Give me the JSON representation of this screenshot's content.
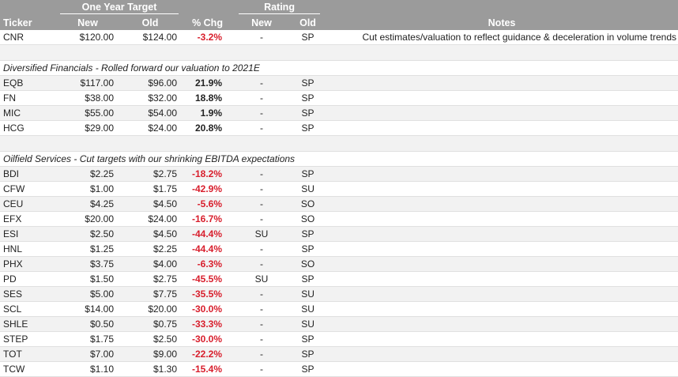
{
  "header": {
    "group_target": "One Year Target",
    "group_rating": "Rating",
    "col_ticker": "Ticker",
    "col_target_new": "New",
    "col_target_old": "Old",
    "col_chg": "% Chg",
    "col_rating_new": "New",
    "col_rating_old": "Old",
    "col_notes": "Notes"
  },
  "first_row": {
    "ticker": "CNR",
    "new": "$120.00",
    "old": "$124.00",
    "chg": "-3.2%",
    "rnew": "-",
    "rold": "SP",
    "note": "Cut estimates/valuation to reflect guidance & deceleration in volume trends"
  },
  "sections": [
    {
      "title": "Diversified Financials - Rolled forward our valuation to 2021E",
      "rows": [
        {
          "ticker": "EQB",
          "new": "$117.00",
          "old": "$96.00",
          "chg": "21.9%",
          "rnew": "-",
          "rold": "SP"
        },
        {
          "ticker": "FN",
          "new": "$38.00",
          "old": "$32.00",
          "chg": "18.8%",
          "rnew": "-",
          "rold": "SP"
        },
        {
          "ticker": "MIC",
          "new": "$55.00",
          "old": "$54.00",
          "chg": "1.9%",
          "rnew": "-",
          "rold": "SP"
        },
        {
          "ticker": "HCG",
          "new": "$29.00",
          "old": "$24.00",
          "chg": "20.8%",
          "rnew": "-",
          "rold": "SP"
        }
      ]
    },
    {
      "title": "Oilfield Services - Cut targets with our shrinking EBITDA expectations",
      "rows": [
        {
          "ticker": "BDI",
          "new": "$2.25",
          "old": "$2.75",
          "chg": "-18.2%",
          "rnew": "-",
          "rold": "SP"
        },
        {
          "ticker": "CFW",
          "new": "$1.00",
          "old": "$1.75",
          "chg": "-42.9%",
          "rnew": "-",
          "rold": "SU"
        },
        {
          "ticker": "CEU",
          "new": "$4.25",
          "old": "$4.50",
          "chg": "-5.6%",
          "rnew": "-",
          "rold": "SO"
        },
        {
          "ticker": "EFX",
          "new": "$20.00",
          "old": "$24.00",
          "chg": "-16.7%",
          "rnew": "-",
          "rold": "SO"
        },
        {
          "ticker": "ESI",
          "new": "$2.50",
          "old": "$4.50",
          "chg": "-44.4%",
          "rnew": "SU",
          "rold": "SP"
        },
        {
          "ticker": "HNL",
          "new": "$1.25",
          "old": "$2.25",
          "chg": "-44.4%",
          "rnew": "-",
          "rold": "SP"
        },
        {
          "ticker": "PHX",
          "new": "$3.75",
          "old": "$4.00",
          "chg": "-6.3%",
          "rnew": "-",
          "rold": "SO"
        },
        {
          "ticker": "PD",
          "new": "$1.50",
          "old": "$2.75",
          "chg": "-45.5%",
          "rnew": "SU",
          "rold": "SP"
        },
        {
          "ticker": "SES",
          "new": "$5.00",
          "old": "$7.75",
          "chg": "-35.5%",
          "rnew": "-",
          "rold": "SU"
        },
        {
          "ticker": "SCL",
          "new": "$14.00",
          "old": "$20.00",
          "chg": "-30.0%",
          "rnew": "-",
          "rold": "SU"
        },
        {
          "ticker": "SHLE",
          "new": "$0.50",
          "old": "$0.75",
          "chg": "-33.3%",
          "rnew": "-",
          "rold": "SU"
        },
        {
          "ticker": "STEP",
          "new": "$1.75",
          "old": "$2.50",
          "chg": "-30.0%",
          "rnew": "-",
          "rold": "SP"
        },
        {
          "ticker": "TOT",
          "new": "$7.00",
          "old": "$9.00",
          "chg": "-22.2%",
          "rnew": "-",
          "rold": "SP"
        },
        {
          "ticker": "TCW",
          "new": "$1.10",
          "old": "$1.30",
          "chg": "-15.4%",
          "rnew": "-",
          "rold": "SP"
        }
      ]
    }
  ],
  "colors": {
    "header_bg": "#9b9b9b",
    "negative": "#d81e2c",
    "stripe": "#f2f2f2"
  }
}
